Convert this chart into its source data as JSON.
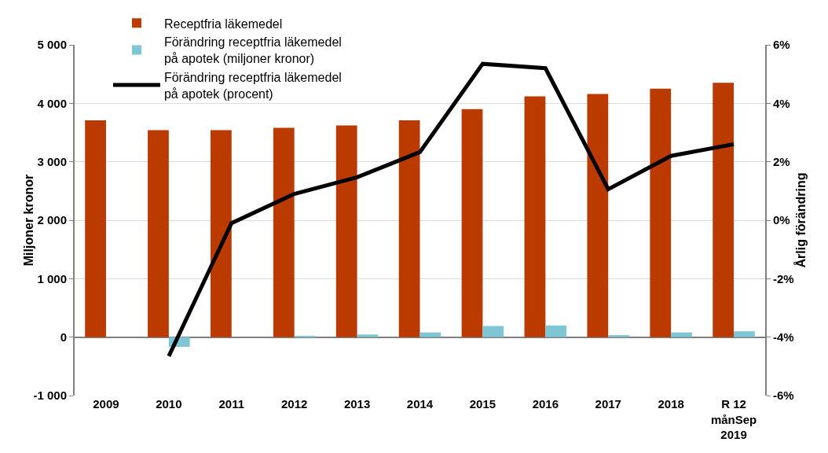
{
  "chart_data": {
    "type": "bar",
    "ylabel": "Miljoner kronor",
    "y2label": "Årlig förändring",
    "categories": [
      "2009",
      "2010",
      "2011",
      "2012",
      "2013",
      "2014",
      "2015",
      "2016",
      "2017",
      "2018",
      "R 12\nmånSep\n2019"
    ],
    "series": [
      {
        "name": "Receptfria läkemedel",
        "color": "#bb3a00",
        "values": [
          3710,
          3540,
          3540,
          3580,
          3620,
          3710,
          3900,
          4120,
          4160,
          4250,
          4350
        ]
      },
      {
        "name": "Förändring receptfria läkemedel\npå apotek (miljoner kronor)",
        "color": "#7fc6d4",
        "values": [
          null,
          -165,
          0,
          20,
          45,
          80,
          190,
          200,
          35,
          80,
          100
        ]
      },
      {
        "name": "Förändring receptfria läkemedel\npå apotek (procent)",
        "color": "#000000",
        "type": "line",
        "axis": "y2",
        "values": [
          null,
          -4.65,
          -0.1,
          0.9,
          1.47,
          2.33,
          5.35,
          5.2,
          1.06,
          2.2,
          2.6
        ]
      }
    ],
    "ylim": [
      -1000,
      5000
    ],
    "yticks": [
      {
        "value": -1000,
        "label": "-1 000"
      },
      {
        "value": 0,
        "label": "0"
      },
      {
        "value": 1000,
        "label": "1 000"
      },
      {
        "value": 2000,
        "label": "2 000"
      },
      {
        "value": 3000,
        "label": "3 000"
      },
      {
        "value": 4000,
        "label": "4 000"
      },
      {
        "value": 5000,
        "label": "5 000"
      }
    ],
    "y2lim": [
      -6,
      6
    ],
    "y2ticks": [
      {
        "value": -6,
        "label": "-6%"
      },
      {
        "value": -4,
        "label": "-4%"
      },
      {
        "value": -2,
        "label": "-2%"
      },
      {
        "value": 0,
        "label": "0%"
      },
      {
        "value": 2,
        "label": "2%"
      },
      {
        "value": 4,
        "label": "4%"
      },
      {
        "value": 6,
        "label": "6%"
      }
    ],
    "grid": "y",
    "legend": "top",
    "marker": "none",
    "line_style": "solid"
  }
}
